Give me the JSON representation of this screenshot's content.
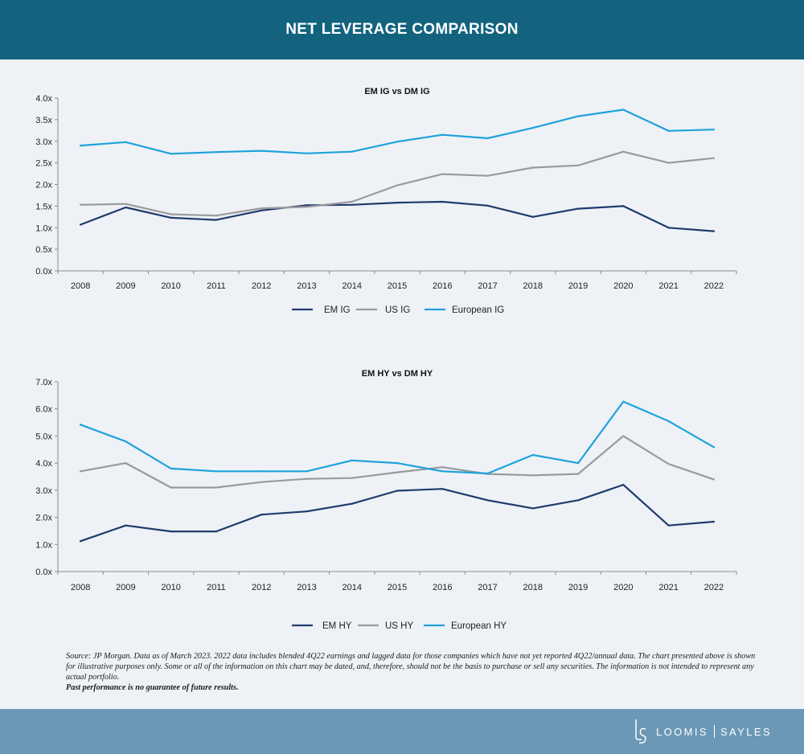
{
  "header": {
    "title": "NET LEVERAGE COMPARISON"
  },
  "chart_data": [
    {
      "type": "line",
      "title": "EM IG vs DM IG",
      "xlabel": "",
      "ylabel": "",
      "x": [
        "2008",
        "2009",
        "2010",
        "2011",
        "2012",
        "2013",
        "2014",
        "2015",
        "2016",
        "2017",
        "2018",
        "2019",
        "2020",
        "2021",
        "2022"
      ],
      "yticks": [
        "0.0x",
        "0.5x",
        "1.0x",
        "1.5x",
        "2.0x",
        "2.5x",
        "3.0x",
        "3.5x",
        "4.0x"
      ],
      "ylim": [
        0,
        4
      ],
      "grid": false,
      "legend_position": "bottom",
      "series": [
        {
          "name": "EM IG",
          "color": "#1f3a6e",
          "values": [
            1.07,
            1.47,
            1.23,
            1.18,
            1.4,
            1.52,
            1.53,
            1.58,
            1.6,
            1.51,
            1.25,
            1.44,
            1.5,
            1.0,
            0.92
          ]
        },
        {
          "name": "US IG",
          "color": "#9a9a9c",
          "values": [
            1.53,
            1.55,
            1.31,
            1.28,
            1.45,
            1.48,
            1.6,
            1.98,
            2.24,
            2.2,
            2.39,
            2.44,
            2.76,
            2.5,
            2.61
          ]
        },
        {
          "name": "European IG",
          "color": "#1ea2dc",
          "values": [
            2.9,
            2.98,
            2.71,
            2.75,
            2.78,
            2.72,
            2.76,
            2.99,
            3.15,
            3.07,
            3.31,
            3.58,
            3.73,
            3.24,
            3.27
          ]
        }
      ]
    },
    {
      "type": "line",
      "title": "EM HY vs DM HY",
      "xlabel": "",
      "ylabel": "",
      "x": [
        "2008",
        "2009",
        "2010",
        "2011",
        "2012",
        "2013",
        "2014",
        "2015",
        "2016",
        "2017",
        "2018",
        "2019",
        "2020",
        "2021",
        "2022"
      ],
      "yticks": [
        "0.0x",
        "1.0x",
        "2.0x",
        "3.0x",
        "4.0x",
        "5.0x",
        "6.0x",
        "7.0x"
      ],
      "ylim": [
        0,
        7
      ],
      "grid": false,
      "legend_position": "bottom",
      "series": [
        {
          "name": "EM HY",
          "color": "#1f3a6e",
          "values": [
            1.12,
            1.7,
            1.48,
            1.48,
            2.1,
            2.22,
            2.5,
            2.98,
            3.05,
            2.63,
            2.33,
            2.63,
            3.2,
            1.7,
            1.84
          ]
        },
        {
          "name": "US HY",
          "color": "#9a9a9c",
          "values": [
            3.7,
            4.0,
            3.1,
            3.1,
            3.3,
            3.42,
            3.45,
            3.66,
            3.85,
            3.6,
            3.55,
            3.6,
            5.0,
            3.97,
            3.4
          ]
        },
        {
          "name": "European HY",
          "color": "#1ea2dc",
          "values": [
            5.42,
            4.8,
            3.8,
            3.7,
            3.7,
            3.7,
            4.1,
            4.0,
            3.7,
            3.62,
            4.3,
            4.0,
            6.27,
            5.55,
            4.59
          ]
        }
      ]
    }
  ],
  "source": {
    "text": "Source: JP Morgan. Data as of March 2023. 2022 data includes blended 4Q22 earnings and lagged data for those companies which have not yet reported 4Q22/annual data. The chart presented above is shown for illustrative purposes only. Some or all of the information on this chart may be dated, and, therefore, should not be the basis to purchase or sell any securities. The information is not intended to represent any actual portfolio.",
    "disclaimer": "Past performance is no guarantee of future results."
  },
  "footer": {
    "brand_left": "LOOMIS",
    "brand_right": "SAYLES",
    "logo_mark": "LS"
  }
}
